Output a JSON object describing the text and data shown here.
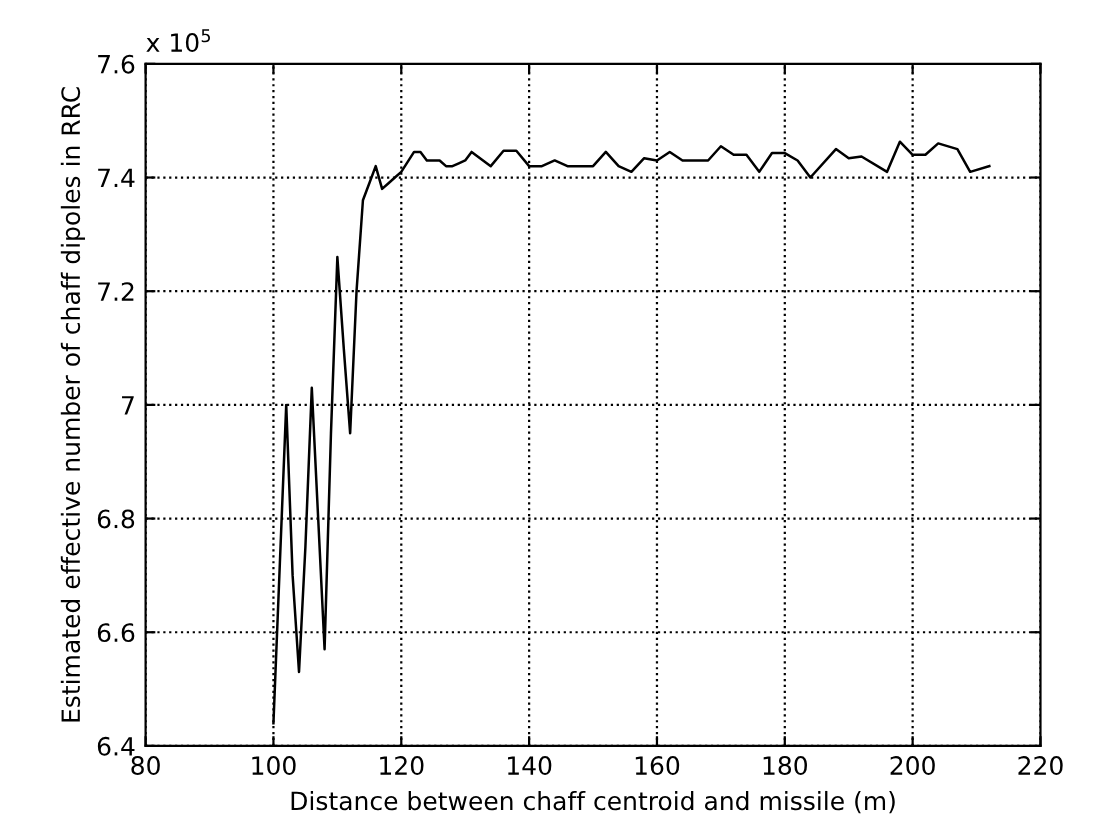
{
  "chart_data": {
    "type": "line",
    "xlabel": "Distance between chaff centroid and missile (m)",
    "ylabel": "Estimated effective number of chaff dipoles in RRC",
    "annotations": [
      "x 10$^{5}$"
    ],
    "x": [
      100,
      101,
      102,
      103,
      104,
      105,
      106,
      107,
      108,
      109,
      110,
      111,
      112,
      113,
      114,
      115,
      116,
      117,
      118,
      119,
      120,
      122,
      123,
      124,
      126,
      127,
      128,
      129,
      130,
      131,
      134,
      136,
      138,
      140,
      142,
      144,
      146,
      150,
      152,
      154,
      156,
      158,
      160,
      162,
      164,
      168,
      170,
      172,
      174,
      176,
      178,
      180,
      182,
      184,
      188,
      190,
      192,
      196,
      198,
      200,
      202,
      204,
      207,
      209,
      212
    ],
    "series": [
      {
        "color": "#000000",
        "values": [
          6.44,
          6.72,
          7.0,
          6.7,
          6.53,
          6.75,
          7.03,
          6.8,
          6.57,
          6.95,
          7.26,
          7.1,
          6.95,
          7.2,
          7.36,
          7.39,
          7.42,
          7.38,
          7.39,
          7.4,
          7.41,
          7.445,
          7.445,
          7.43,
          7.43,
          7.42,
          7.42,
          7.425,
          7.43,
          7.445,
          7.42,
          7.447,
          7.447,
          7.42,
          7.42,
          7.43,
          7.42,
          7.42,
          7.445,
          7.42,
          7.41,
          7.434,
          7.43,
          7.445,
          7.43,
          7.43,
          7.455,
          7.44,
          7.44,
          7.41,
          7.443,
          7.443,
          7.43,
          7.4,
          7.45,
          7.434,
          7.437,
          7.41,
          7.463,
          7.44,
          7.44,
          7.46,
          7.45,
          7.41,
          7.42
        ]
      }
    ],
    "xlim": [
      80,
      220
    ],
    "ylim": [
      6.4,
      7.6
    ],
    "xticks": [
      80,
      100,
      120,
      140,
      160,
      180,
      200,
      220
    ],
    "yticks": [
      6.4,
      6.6,
      6.8,
      7,
      7.2,
      7.4,
      7.6
    ],
    "grid": true,
    "line_style": "solid",
    "marker": "none"
  }
}
